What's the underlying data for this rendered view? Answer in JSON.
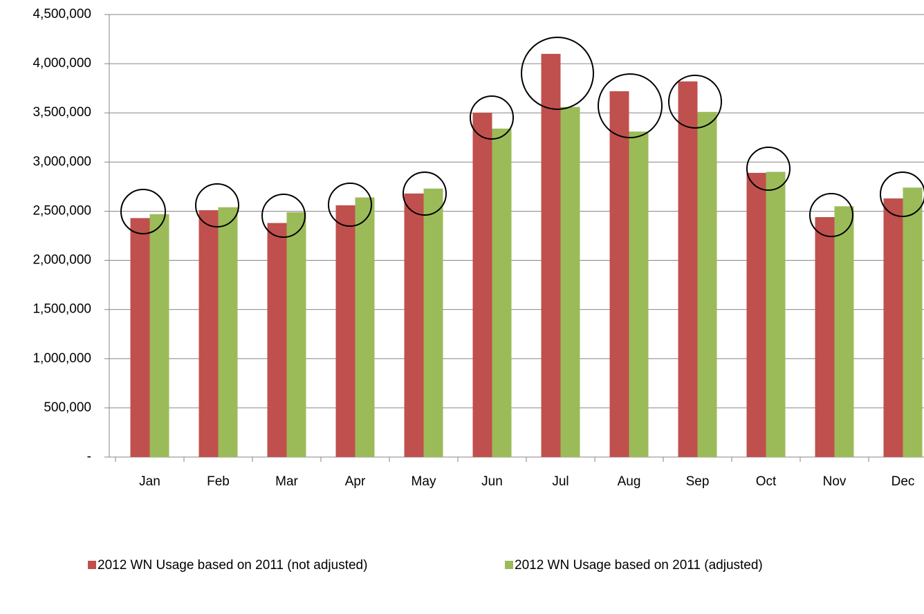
{
  "chart_data": {
    "type": "bar",
    "categories": [
      "Jan",
      "Feb",
      "Mar",
      "Apr",
      "May",
      "Jun",
      "Jul",
      "Aug",
      "Sep",
      "Oct",
      "Nov",
      "Dec"
    ],
    "series": [
      {
        "name": "2012 WN Usage based on 2011 (not adjusted)",
        "color": "#c0504d",
        "values": [
          2430000,
          2510000,
          2380000,
          2560000,
          2680000,
          3500000,
          4100000,
          3720000,
          3820000,
          2890000,
          2440000,
          2630000
        ]
      },
      {
        "name": "2012 WN Usage based on 2011 (adjusted)",
        "color": "#9bbb59",
        "values": [
          2470000,
          2540000,
          2490000,
          2640000,
          2730000,
          3340000,
          3560000,
          3310000,
          3510000,
          2900000,
          2550000,
          2740000
        ]
      }
    ],
    "ylim": [
      0,
      4500000
    ],
    "yticks": [
      {
        "value": 0,
        "label": "-"
      },
      {
        "value": 500000,
        "label": "500,000"
      },
      {
        "value": 1000000,
        "label": "1,000,000"
      },
      {
        "value": 1500000,
        "label": "1,500,000"
      },
      {
        "value": 2000000,
        "label": "2,000,000"
      },
      {
        "value": 2500000,
        "label": "2,500,000"
      },
      {
        "value": 3000000,
        "label": "3,000,000"
      },
      {
        "value": 3500000,
        "label": "3,500,000"
      },
      {
        "value": 4000000,
        "label": "4,000,000"
      },
      {
        "value": 4500000,
        "label": "4,500,000"
      }
    ],
    "grid": true
  }
}
